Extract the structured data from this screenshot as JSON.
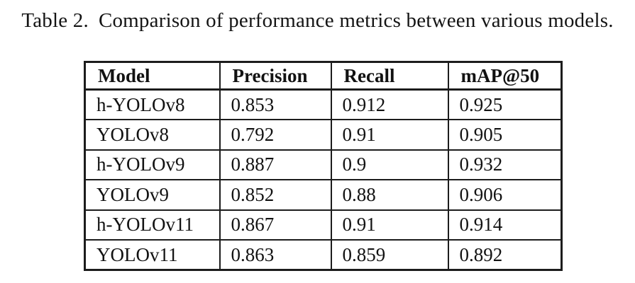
{
  "caption": {
    "label": "Table 2.",
    "text": "Comparison of performance metrics between various models."
  },
  "table": {
    "headers": [
      "Model",
      "Precision",
      "Recall",
      "mAP@50"
    ],
    "rows": [
      [
        "h-YOLOv8",
        "0.853",
        "0.912",
        "0.925"
      ],
      [
        "YOLOv8",
        "0.792",
        "0.91",
        "0.905"
      ],
      [
        "h-YOLOv9",
        "0.887",
        "0.9",
        "0.932"
      ],
      [
        "YOLOv9",
        "0.852",
        "0.88",
        "0.906"
      ],
      [
        "h-YOLOv11",
        "0.867",
        "0.91",
        "0.914"
      ],
      [
        "YOLOv11",
        "0.863",
        "0.859",
        "0.892"
      ]
    ]
  },
  "colors": {
    "background": "#ffffff",
    "text": "#121212",
    "border": "#1c1c1c"
  }
}
